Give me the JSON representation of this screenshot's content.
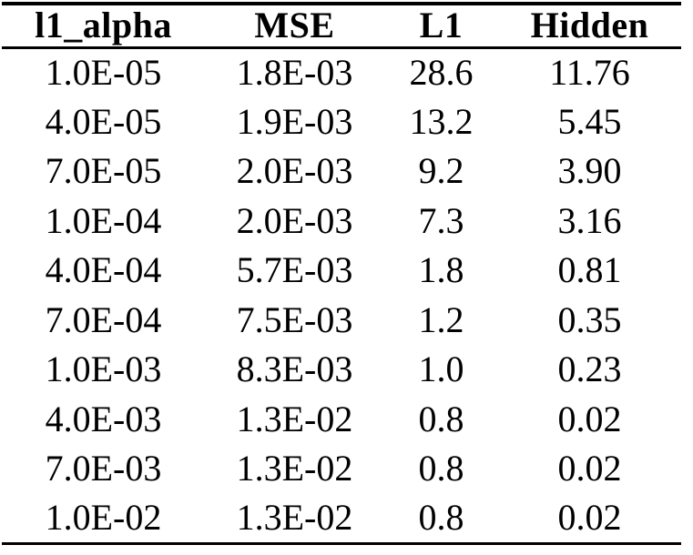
{
  "table": {
    "headers": [
      "l1_alpha",
      "MSE",
      "L1",
      "Hidden"
    ],
    "rows": [
      [
        "1.0E-05",
        "1.8E-03",
        "28.6",
        "11.76"
      ],
      [
        "4.0E-05",
        "1.9E-03",
        "13.2",
        "5.45"
      ],
      [
        "7.0E-05",
        "2.0E-03",
        "9.2",
        "3.90"
      ],
      [
        "1.0E-04",
        "2.0E-03",
        "7.3",
        "3.16"
      ],
      [
        "4.0E-04",
        "5.7E-03",
        "1.8",
        "0.81"
      ],
      [
        "7.0E-04",
        "7.5E-03",
        "1.2",
        "0.35"
      ],
      [
        "1.0E-03",
        "8.3E-03",
        "1.0",
        "0.23"
      ],
      [
        "4.0E-03",
        "1.3E-02",
        "0.8",
        "0.02"
      ],
      [
        "7.0E-03",
        "1.3E-02",
        "0.8",
        "0.02"
      ],
      [
        "1.0E-02",
        "1.3E-02",
        "0.8",
        "0.02"
      ]
    ]
  },
  "chart_data": {
    "type": "table",
    "columns": [
      "l1_alpha",
      "MSE",
      "L1",
      "Hidden"
    ],
    "rows": [
      [
        "1.0E-05",
        "1.8E-03",
        "28.6",
        "11.76"
      ],
      [
        "4.0E-05",
        "1.9E-03",
        "13.2",
        "5.45"
      ],
      [
        "7.0E-05",
        "2.0E-03",
        "9.2",
        "3.90"
      ],
      [
        "1.0E-04",
        "2.0E-03",
        "7.3",
        "3.16"
      ],
      [
        "4.0E-04",
        "5.7E-03",
        "1.8",
        "0.81"
      ],
      [
        "7.0E-04",
        "7.5E-03",
        "1.2",
        "0.35"
      ],
      [
        "1.0E-03",
        "8.3E-03",
        "1.0",
        "0.23"
      ],
      [
        "4.0E-03",
        "1.3E-02",
        "0.8",
        "0.02"
      ],
      [
        "7.0E-03",
        "1.3E-02",
        "0.8",
        "0.02"
      ],
      [
        "1.0E-02",
        "1.3E-02",
        "0.8",
        "0.02"
      ]
    ]
  },
  "colors": {
    "text": "#000000",
    "background": "#ffffff",
    "rule": "#000000"
  }
}
